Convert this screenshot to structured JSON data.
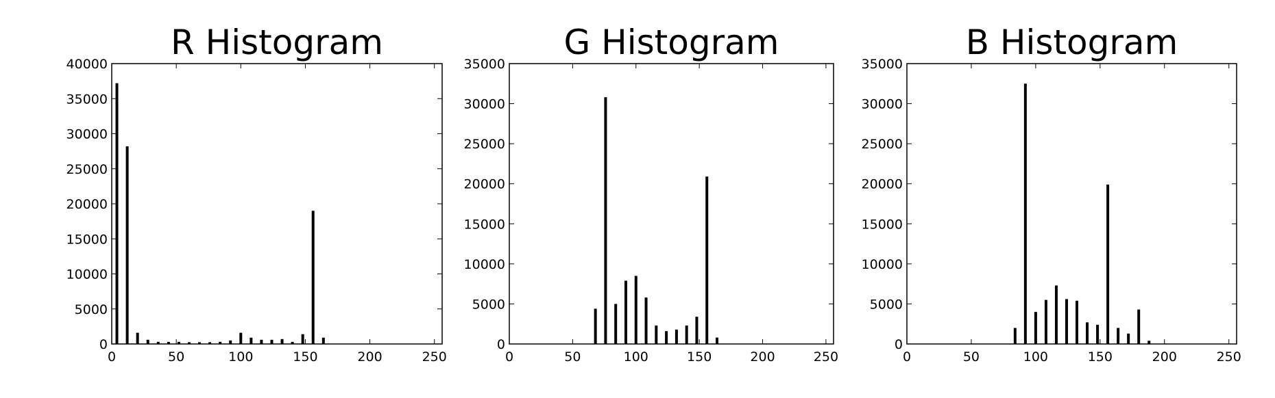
{
  "chart_data": [
    {
      "type": "bar",
      "title": "R Histogram",
      "xlabel": "",
      "ylabel": "",
      "xlim": [
        0,
        256
      ],
      "ylim": [
        0,
        40000
      ],
      "xticks": [
        0,
        50,
        100,
        150,
        200,
        250
      ],
      "yticks": [
        0,
        5000,
        10000,
        15000,
        20000,
        25000,
        30000,
        35000,
        40000
      ],
      "grid": false,
      "bar_color": "#000000",
      "x": [
        4,
        12,
        20,
        28,
        36,
        44,
        52,
        60,
        68,
        76,
        84,
        92,
        100,
        108,
        116,
        124,
        132,
        140,
        148,
        156,
        164
      ],
      "values": [
        37200,
        28200,
        1600,
        600,
        300,
        300,
        300,
        250,
        250,
        250,
        300,
        500,
        1600,
        900,
        600,
        600,
        700,
        300,
        1400,
        19000,
        900
      ]
    },
    {
      "type": "bar",
      "title": "G Histogram",
      "xlabel": "",
      "ylabel": "",
      "xlim": [
        0,
        256
      ],
      "ylim": [
        0,
        35000
      ],
      "xticks": [
        0,
        50,
        100,
        150,
        200,
        250
      ],
      "yticks": [
        0,
        5000,
        10000,
        15000,
        20000,
        25000,
        30000,
        35000
      ],
      "grid": false,
      "bar_color": "#000000",
      "x": [
        68,
        76,
        84,
        92,
        100,
        108,
        116,
        124,
        132,
        140,
        148,
        156,
        164
      ],
      "values": [
        4400,
        30800,
        5000,
        7900,
        8500,
        5800,
        2300,
        1600,
        1800,
        2300,
        3400,
        20900,
        800
      ]
    },
    {
      "type": "bar",
      "title": "B Histogram",
      "xlabel": "",
      "ylabel": "",
      "xlim": [
        0,
        256
      ],
      "ylim": [
        0,
        35000
      ],
      "xticks": [
        0,
        50,
        100,
        150,
        200,
        250
      ],
      "yticks": [
        0,
        5000,
        10000,
        15000,
        20000,
        25000,
        30000,
        35000
      ],
      "grid": false,
      "bar_color": "#000000",
      "x": [
        84,
        92,
        100,
        108,
        116,
        124,
        132,
        140,
        148,
        156,
        164,
        172,
        180,
        188
      ],
      "values": [
        2000,
        32500,
        4000,
        5500,
        7300,
        5600,
        5400,
        2700,
        2400,
        19900,
        2000,
        1300,
        4300,
        400
      ]
    }
  ]
}
